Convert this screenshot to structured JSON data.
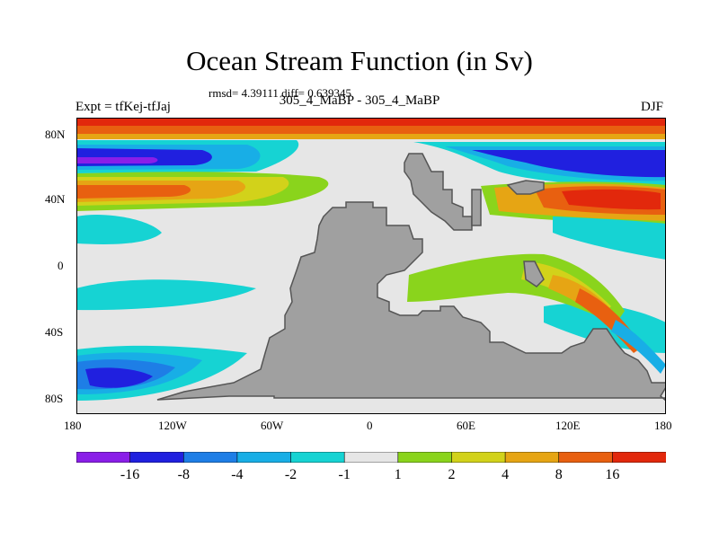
{
  "title": "Ocean Stream Function (in Sv)",
  "stats": "rmsd= 4.39111 diff= 0.639345",
  "left_label": "Expt = tfKej-tfJaj",
  "center_label": "305_4_MaBP - 305_4_MaBP",
  "right_label": "DJF",
  "lat_ticks": [
    "80N",
    "40N",
    "0",
    "40S",
    "80S"
  ],
  "lon_ticks": [
    "180",
    "120W",
    "60W",
    "0",
    "60E",
    "120E",
    "180"
  ],
  "colorbar": {
    "labels": [
      "-16",
      "-8",
      "-4",
      "-2",
      "-1",
      "1",
      "2",
      "4",
      "8",
      "16"
    ],
    "colors": [
      "#8a1ee8",
      "#2020df",
      "#1e7ee6",
      "#18aee6",
      "#16d3d3",
      "#e6e6e6",
      "#8ad41c",
      "#d2d21a",
      "#e6a514",
      "#e86010",
      "#e2280c"
    ]
  },
  "colors": {
    "land": "#a0a0a0",
    "ocean_neutral": "#e6e6e6"
  }
}
